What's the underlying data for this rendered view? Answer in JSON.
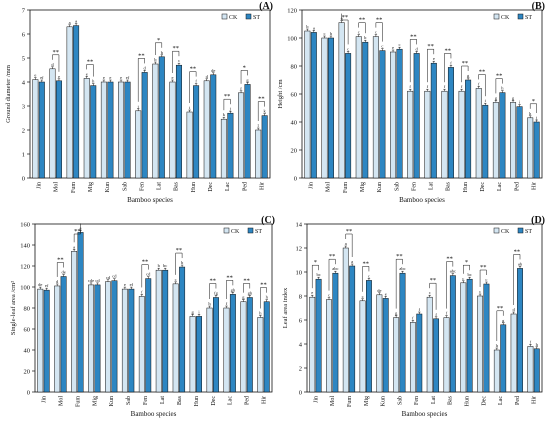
{
  "colors": {
    "CK": "#d4e6f2",
    "ST": "#2d86c2",
    "axis": "#111111"
  },
  "chart_data": [
    {
      "type": "bar",
      "panel_label": "(A)",
      "ylabel": "Ground diameter /mm",
      "xlabel": "Bamboo species",
      "ylim": [
        0,
        7
      ],
      "yticks": [
        0,
        1,
        2,
        3,
        4,
        5,
        6,
        7
      ],
      "legend": "top-right",
      "categories": [
        "Jin",
        "Mol",
        "Fum",
        "Mig",
        "Kun",
        "Sab",
        "Fen",
        "Lat",
        "Bas",
        "Hun",
        "Dec",
        "Lac",
        "Ped",
        "Hir"
      ],
      "series": [
        {
          "name": "CK",
          "values": [
            4.1,
            4.55,
            6.3,
            4.15,
            4.0,
            4.0,
            2.8,
            4.75,
            4.0,
            2.75,
            4.05,
            2.45,
            3.55,
            2.0
          ],
          "letters": [
            "e",
            "d",
            "a",
            "e",
            "e",
            "e",
            "j",
            "b",
            "e",
            "i",
            "d",
            "k",
            "f",
            "l"
          ]
        },
        {
          "name": "ST",
          "values": [
            4.0,
            4.05,
            6.35,
            3.85,
            4.0,
            4.0,
            4.4,
            5.05,
            4.7,
            3.85,
            4.3,
            2.7,
            3.9,
            2.6
          ],
          "letters": [
            "ef",
            "e",
            "a",
            "h",
            "e",
            "ef",
            "d",
            "b",
            "c",
            "f",
            "de",
            "j",
            "g",
            "k"
          ]
        }
      ],
      "significance": [
        "",
        "**",
        "",
        "**",
        "",
        "",
        "**",
        "*",
        "**",
        "**",
        "",
        "**",
        "*",
        "**"
      ]
    },
    {
      "type": "bar",
      "panel_label": "(B)",
      "ylabel": "Height /cm",
      "xlabel": "Bamboo species",
      "ylim": [
        0,
        120
      ],
      "yticks": [
        0,
        20,
        40,
        60,
        80,
        100,
        120
      ],
      "legend": "top-right",
      "categories": [
        "Jin",
        "Mol",
        "Fum",
        "Mig",
        "Kun",
        "Sab",
        "Fen",
        "Lat",
        "Bas",
        "Hun",
        "Dec",
        "Lac",
        "Ped",
        "Hir"
      ],
      "series": [
        {
          "name": "CK",
          "values": [
            105,
            100,
            111,
            101,
            101,
            90,
            62,
            62,
            62,
            62,
            64,
            54,
            54,
            43
          ],
          "letters": [
            "b",
            "c",
            "a",
            "c",
            "c",
            "e",
            "f",
            "f",
            "f",
            "f",
            "f",
            "g",
            "g",
            "h"
          ]
        },
        {
          "name": "ST",
          "values": [
            104,
            100,
            89,
            97,
            91,
            92,
            89,
            82,
            79,
            70,
            52,
            61,
            51,
            40
          ],
          "letters": [
            "a",
            "b",
            "c",
            "b",
            "c",
            "c",
            "d",
            "e",
            "f",
            "g",
            "i",
            "h",
            "i",
            "j"
          ]
        }
      ],
      "significance": [
        "",
        "",
        "**",
        "**",
        "**",
        "",
        "**",
        "**",
        "**",
        "**",
        "**",
        "**",
        "",
        "*"
      ]
    },
    {
      "type": "bar",
      "panel_label": "(C)",
      "ylabel": "Single-leaf area /cm²",
      "xlabel": "Bamboo species",
      "ylim": [
        0,
        160
      ],
      "yticks": [
        0,
        20,
        40,
        60,
        80,
        100,
        120,
        140,
        160
      ],
      "legend": "top-right",
      "categories": [
        "Jin",
        "Mol",
        "Fum",
        "Mig",
        "Kun",
        "Sab",
        "Fen",
        "Lat",
        "Bas",
        "Hun",
        "Dec",
        "Lac",
        "Ped",
        "Hir"
      ],
      "series": [
        {
          "name": "CK",
          "values": [
            98,
            101,
            134,
            102,
            105,
            98,
            91,
            116,
            103,
            72,
            80,
            80,
            86,
            71
          ],
          "letters": [
            "de",
            "d",
            "a",
            "cde",
            "cd",
            "e",
            "f",
            "b",
            "c",
            "g",
            "h",
            "f",
            "g",
            "h"
          ]
        },
        {
          "name": "ST",
          "values": [
            97,
            110,
            152,
            102,
            106,
            98,
            108,
            116,
            119,
            72,
            90,
            93,
            90,
            86
          ],
          "letters": [
            "ef",
            "de",
            "a",
            "cd",
            "cd",
            "ef",
            "cd",
            "bc",
            "b",
            "i",
            "fg",
            "gh",
            "gh",
            "h"
          ]
        }
      ],
      "significance": [
        "",
        "**",
        "**",
        "",
        "",
        "",
        "**",
        "",
        "**",
        "",
        "**",
        "**",
        "**",
        "**"
      ]
    },
    {
      "type": "bar",
      "panel_label": "(D)",
      "ylabel": "Leaf area index",
      "xlabel": "Bamboo species",
      "ylim": [
        0,
        14
      ],
      "yticks": [
        0,
        2,
        4,
        6,
        8,
        10,
        12,
        14
      ],
      "legend": "top-right",
      "categories": [
        "Jin",
        "Mol",
        "Fum",
        "Mig",
        "Kun",
        "Sab",
        "Fen",
        "Lat",
        "Bas",
        "Hun",
        "Dec",
        "Lac",
        "Ped",
        "Hir"
      ],
      "series": [
        {
          "name": "CK",
          "values": [
            7.9,
            7.7,
            12.0,
            7.6,
            8.1,
            6.2,
            5.8,
            7.9,
            6.2,
            9.1,
            8.0,
            3.5,
            6.5,
            3.8
          ],
          "letters": [
            "e",
            "c",
            "a",
            "c",
            "de",
            "g",
            "f",
            "c",
            "f",
            "c",
            "c",
            "h",
            "d",
            "f"
          ]
        },
        {
          "name": "ST",
          "values": [
            9.4,
            9.9,
            10.5,
            9.3,
            7.8,
            9.9,
            6.5,
            6.1,
            9.7,
            9.4,
            9.0,
            5.6,
            10.3,
            3.6
          ],
          "letters": [
            "bc",
            "abc",
            "a",
            "c",
            "e",
            "abc",
            "f",
            "f",
            "abc",
            "bc",
            "c",
            "g",
            "ab",
            "h"
          ]
        }
      ],
      "significance": [
        "*",
        "**",
        "**",
        "**",
        "",
        "**",
        "",
        "**",
        "**",
        "*",
        "**",
        "**",
        "**",
        ""
      ]
    }
  ]
}
